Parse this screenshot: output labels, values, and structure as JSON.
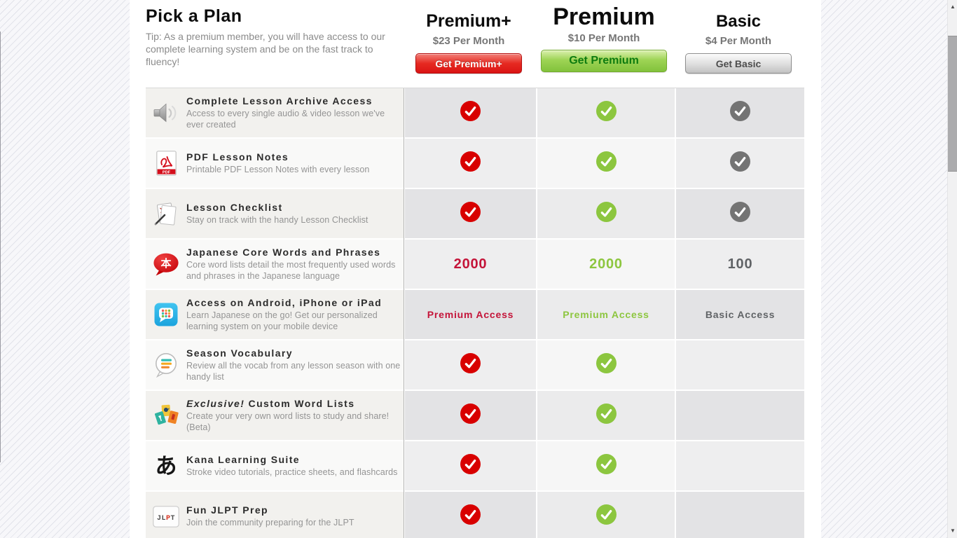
{
  "page": {
    "title": "Pick a Plan",
    "tip": "Tip: As a premium member, you will have access to our complete learning system and be on the fast track to fluency!"
  },
  "plans": [
    {
      "slug": "premium-plus",
      "name": "Premium+",
      "price": "$23 Per Month",
      "button": "Get Premium+",
      "accent": "#da1414",
      "check_color": "#d80000",
      "text_color": "#c41439",
      "check_icon": "red-check-circle-icon"
    },
    {
      "slug": "premium",
      "name": "Premium",
      "price": "$10 Per Month",
      "button": "Get Premium",
      "accent": "#8cc63f",
      "check_color": "#8cc63f",
      "text_color": "#8dc63f",
      "check_icon": "green-check-circle-icon"
    },
    {
      "slug": "basic",
      "name": "Basic",
      "price": "$4 Per Month",
      "button": "Get Basic",
      "accent": "#bdbdbd",
      "check_color": "#747474",
      "text_color": "#606366",
      "check_icon": "gray-check-circle-icon"
    }
  ],
  "features": [
    {
      "icon": "speaker-icon",
      "title": "Complete Lesson Archive Access",
      "desc": "Access to every single audio & video lesson we've ever created",
      "cells": [
        "check",
        "check",
        "check"
      ]
    },
    {
      "icon": "pdf-icon",
      "title": "PDF Lesson Notes",
      "desc": "Printable PDF Lesson Notes with every lesson",
      "cells": [
        "check",
        "check",
        "check"
      ]
    },
    {
      "icon": "checklist-icon",
      "title": "Lesson Checklist",
      "desc": "Stay on track with the handy Lesson Checklist",
      "cells": [
        "check",
        "check",
        "check"
      ]
    },
    {
      "icon": "core-words-icon",
      "title": "Japanese Core Words and Phrases",
      "desc": "Core word lists detail the most frequently used words and phrases in the Japanese language",
      "cells": [
        "2000",
        "2000",
        "100"
      ]
    },
    {
      "icon": "mobile-app-icon",
      "title": "Access on Android, iPhone or iPad",
      "desc": "Learn Japanese on the go! Get our personalized learning system on your mobile device",
      "cells": [
        "Premium Access",
        "Premium Access",
        "Basic Access"
      ]
    },
    {
      "icon": "season-vocabulary-icon",
      "title": "Season Vocabulary",
      "desc": "Review all the vocab from any lesson season with one handy list",
      "cells": [
        "check",
        "check",
        ""
      ]
    },
    {
      "icon": "word-lists-icon",
      "title_italic": "Exclusive!",
      "title": "Custom Word Lists",
      "desc": "Create your very own word lists to study and share! (Beta)",
      "cells": [
        "check",
        "check",
        ""
      ]
    },
    {
      "icon": "kana-icon",
      "title": "Kana Learning Suite",
      "desc": "Stroke video tutorials, practice sheets, and flashcards",
      "cells": [
        "check",
        "check",
        ""
      ]
    },
    {
      "icon": "jlpt-icon",
      "title": "Fun JLPT Prep",
      "desc": "Join the community preparing for the JLPT",
      "cells": [
        "check",
        "check",
        ""
      ]
    }
  ],
  "scrollbar": {
    "up": "▲",
    "down": "▼"
  }
}
